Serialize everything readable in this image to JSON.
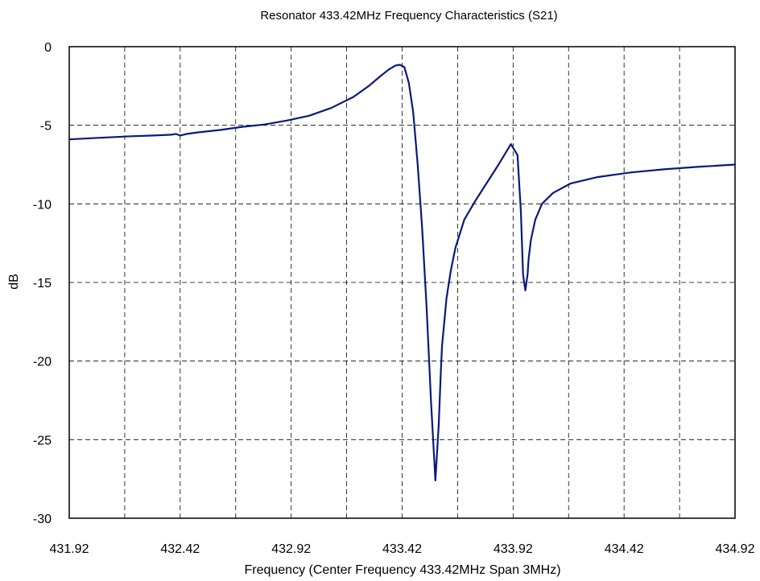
{
  "chart_data": {
    "type": "line",
    "title": "Resonator 433.42MHz Frequency Characteristics (S21)",
    "xlabel": "Frequency (Center Frequency 433.42MHz Span 3MHz)",
    "ylabel": "dB",
    "xlim": [
      431.92,
      434.92
    ],
    "ylim": [
      -30,
      0
    ],
    "x_ticks": [
      431.92,
      432.42,
      432.92,
      433.42,
      433.92,
      434.42,
      434.92
    ],
    "x_tick_labels": [
      "431.92",
      "432.42",
      "432.92",
      "433.42",
      "433.92",
      "434.42",
      "434.92"
    ],
    "x_minor_grid": [
      432.17,
      432.67,
      433.17,
      433.67,
      434.17,
      434.67
    ],
    "y_ticks": [
      0,
      -5,
      -10,
      -15,
      -20,
      -25,
      -30
    ],
    "y_tick_labels": [
      "0",
      "-5",
      "-10",
      "-15",
      "-20",
      "-25",
      "-30"
    ],
    "grid": true,
    "line_color": "#0a1a7a",
    "series": [
      {
        "x": [
          431.92,
          432.05,
          432.2,
          432.3,
          432.38,
          432.4,
          432.42,
          432.45,
          432.5,
          432.6,
          432.7,
          432.8,
          432.9,
          433.0,
          433.1,
          433.2,
          433.27,
          433.32,
          433.36,
          433.39,
          433.41,
          433.43,
          433.45,
          433.47,
          433.49,
          433.51,
          433.53,
          433.55,
          433.57,
          433.585,
          433.595,
          433.6,
          433.61,
          433.62,
          433.64,
          433.66,
          433.7,
          433.75,
          433.8,
          433.85,
          433.88,
          433.91,
          433.94,
          433.955,
          433.965,
          433.975,
          433.985,
          433.99,
          434.0,
          434.02,
          434.05,
          434.1,
          434.18,
          434.3,
          434.45,
          434.6,
          434.75,
          434.92
        ],
        "y": [
          -5.9,
          -5.8,
          -5.7,
          -5.65,
          -5.6,
          -5.55,
          -5.65,
          -5.55,
          -5.45,
          -5.3,
          -5.1,
          -4.95,
          -4.7,
          -4.4,
          -3.9,
          -3.2,
          -2.5,
          -1.9,
          -1.45,
          -1.2,
          -1.15,
          -1.3,
          -2.3,
          -4.2,
          -7.5,
          -11.5,
          -16.5,
          -22.5,
          -27.6,
          -24.0,
          -20.5,
          -19.0,
          -17.5,
          -16.0,
          -14.2,
          -12.8,
          -11.0,
          -9.8,
          -8.7,
          -7.6,
          -6.9,
          -6.2,
          -6.9,
          -10.5,
          -14.5,
          -15.5,
          -14.5,
          -13.5,
          -12.3,
          -11.0,
          -10.0,
          -9.3,
          -8.7,
          -8.3,
          -8.0,
          -7.8,
          -7.65,
          -7.5
        ]
      }
    ]
  }
}
